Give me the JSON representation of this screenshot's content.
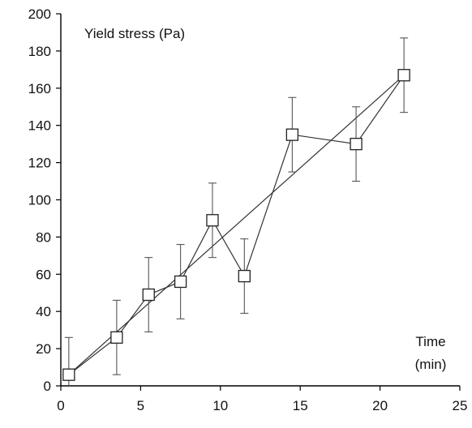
{
  "chart_data": {
    "type": "scatter",
    "title": "",
    "ylabel": "Yield stress (Pa)",
    "xlabel_line1": "Time",
    "xlabel_line2": "(min)",
    "xlim": [
      0,
      25
    ],
    "ylim": [
      0,
      200
    ],
    "xticks": [
      0,
      5,
      10,
      15,
      20,
      25
    ],
    "yticks": [
      0,
      20,
      40,
      60,
      80,
      100,
      120,
      140,
      160,
      180,
      200
    ],
    "grid": false,
    "series": [
      {
        "x": [
          0.5,
          3.5,
          5.5,
          7.5,
          9.5,
          11.5,
          14.5,
          18.5,
          21.5
        ],
        "y": [
          6,
          26,
          49,
          56,
          89,
          59,
          135,
          130,
          167
        ],
        "error": [
          20,
          20,
          20,
          20,
          20,
          20,
          20,
          20,
          20
        ],
        "marker": "open-square",
        "connected": true
      }
    ],
    "fit_line": {
      "x": [
        0.5,
        21.5
      ],
      "y": [
        6,
        167
      ]
    },
    "colors": {
      "line": "#333333",
      "marker_fill": "#ffffff",
      "marker_stroke": "#222222",
      "text": "#111111"
    }
  }
}
